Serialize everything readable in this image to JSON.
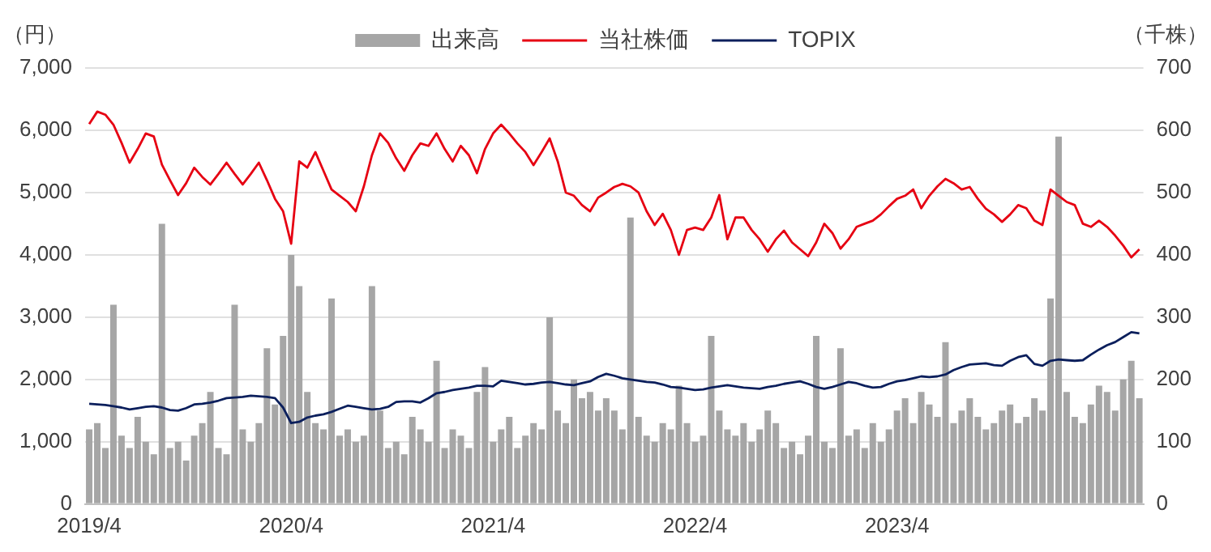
{
  "chart_data": {
    "type": "bar",
    "ylabel": "（円）",
    "y2label": "（千株）",
    "legend": "top",
    "grid": "y",
    "marker": "none",
    "line_style": "solid",
    "categories": [
      "2019/4",
      null,
      null,
      null,
      null,
      null,
      null,
      null,
      null,
      null,
      null,
      null,
      null,
      null,
      null,
      null,
      null,
      null,
      null,
      null,
      null,
      null,
      null,
      null,
      null,
      "2020/4",
      null,
      null,
      null,
      null,
      null,
      null,
      null,
      null,
      null,
      null,
      null,
      null,
      null,
      null,
      null,
      null,
      null,
      null,
      null,
      null,
      null,
      null,
      null,
      null,
      "2021/4",
      null,
      null,
      null,
      null,
      null,
      null,
      null,
      null,
      null,
      null,
      null,
      null,
      null,
      null,
      null,
      null,
      null,
      null,
      null,
      null,
      null,
      null,
      null,
      null,
      "2022/4",
      null,
      null,
      null,
      null,
      null,
      null,
      null,
      null,
      null,
      null,
      null,
      null,
      null,
      null,
      null,
      null,
      null,
      null,
      null,
      null,
      null,
      null,
      null,
      null,
      "2023/4",
      null,
      null,
      null,
      null,
      null,
      null,
      null,
      null,
      null,
      null,
      null,
      null,
      null,
      null,
      null,
      null,
      null,
      null,
      null,
      null,
      null,
      null,
      null,
      null,
      null,
      null,
      null,
      null,
      null,
      null
    ],
    "series": [
      {
        "name": "出来高",
        "axis": "y2",
        "color": "#a6a6a6",
        "values": [
          120,
          130,
          90,
          320,
          110,
          90,
          140,
          100,
          80,
          450,
          90,
          100,
          70,
          110,
          130,
          180,
          90,
          80,
          320,
          120,
          100,
          130,
          250,
          160,
          270,
          400,
          350,
          180,
          130,
          120,
          330,
          110,
          120,
          100,
          110,
          350,
          150,
          90,
          100,
          80,
          140,
          120,
          100,
          230,
          90,
          120,
          110,
          90,
          180,
          220,
          100,
          120,
          140,
          90,
          110,
          130,
          120,
          300,
          150,
          130,
          200,
          170,
          180,
          150,
          170,
          150,
          120,
          460,
          140,
          110,
          100,
          130,
          120,
          190,
          130,
          100,
          110,
          270,
          150,
          120,
          110,
          130,
          100,
          120,
          150,
          130,
          90,
          100,
          80,
          110,
          270,
          100,
          90,
          250,
          110,
          120,
          90,
          130,
          100,
          120,
          150,
          170,
          130,
          180,
          160,
          140,
          260,
          130,
          150,
          170,
          140,
          120,
          130,
          150,
          160,
          130,
          140,
          170,
          150,
          330,
          590,
          180,
          140,
          130,
          160,
          190,
          180,
          150,
          200,
          230,
          170
        ]
      },
      {
        "name": "当社株価",
        "type": "line",
        "color": "#e60012",
        "values": [
          6100,
          6300,
          6250,
          6090,
          5800,
          5480,
          5700,
          5950,
          5900,
          5450,
          5200,
          4960,
          5150,
          5400,
          5250,
          5130,
          5300,
          5480,
          5300,
          5130,
          5300,
          5480,
          5200,
          4900,
          4700,
          4180,
          5500,
          5400,
          5650,
          5350,
          5050,
          4950,
          4850,
          4700,
          5100,
          5600,
          5950,
          5800,
          5550,
          5350,
          5600,
          5790,
          5750,
          5950,
          5700,
          5500,
          5750,
          5600,
          5310,
          5700,
          5950,
          6090,
          5950,
          5790,
          5650,
          5440,
          5650,
          5870,
          5500,
          5000,
          4950,
          4800,
          4700,
          4920,
          5000,
          5090,
          5140,
          5100,
          5000,
          4700,
          4480,
          4660,
          4400,
          4000,
          4400,
          4440,
          4400,
          4600,
          4960,
          4250,
          4600,
          4600,
          4400,
          4250,
          4050,
          4250,
          4390,
          4200,
          4090,
          3980,
          4200,
          4500,
          4350,
          4100,
          4250,
          4450,
          4500,
          4550,
          4650,
          4780,
          4900,
          4950,
          5050,
          4750,
          4950,
          5100,
          5220,
          5150,
          5050,
          5090,
          4900,
          4740,
          4650,
          4530,
          4650,
          4800,
          4750,
          4550,
          4480,
          5050,
          4950,
          4850,
          4800,
          4500,
          4450,
          4550,
          4450,
          4310,
          4150,
          3960,
          4090
        ]
      },
      {
        "name": "TOPIX",
        "type": "line",
        "color": "#0b1f5c",
        "values": [
          1610,
          1600,
          1590,
          1570,
          1550,
          1520,
          1540,
          1560,
          1570,
          1550,
          1510,
          1500,
          1540,
          1600,
          1610,
          1630,
          1660,
          1700,
          1710,
          1720,
          1740,
          1730,
          1720,
          1700,
          1550,
          1300,
          1320,
          1390,
          1420,
          1440,
          1480,
          1530,
          1580,
          1560,
          1540,
          1520,
          1530,
          1560,
          1640,
          1650,
          1650,
          1630,
          1700,
          1780,
          1800,
          1830,
          1850,
          1870,
          1900,
          1900,
          1890,
          1980,
          1960,
          1940,
          1920,
          1930,
          1950,
          1960,
          1940,
          1920,
          1910,
          1940,
          1970,
          2040,
          2090,
          2060,
          2020,
          2000,
          1980,
          1960,
          1950,
          1920,
          1880,
          1870,
          1850,
          1830,
          1840,
          1870,
          1890,
          1910,
          1890,
          1870,
          1860,
          1850,
          1880,
          1900,
          1930,
          1950,
          1970,
          1930,
          1880,
          1850,
          1880,
          1920,
          1960,
          1940,
          1900,
          1870,
          1880,
          1930,
          1970,
          1990,
          2020,
          2050,
          2040,
          2050,
          2080,
          2150,
          2200,
          2240,
          2250,
          2260,
          2230,
          2220,
          2300,
          2360,
          2390,
          2250,
          2220,
          2300,
          2320,
          2310,
          2300,
          2310,
          2400,
          2480,
          2550,
          2600,
          2680,
          2760,
          2740
        ]
      }
    ],
    "ylim": [
      0,
      7000
    ],
    "yticks": [
      0,
      {
        "value": 1000,
        "label": "1,000"
      },
      {
        "value": 2000,
        "label": "2,000"
      },
      {
        "value": 3000,
        "label": "3,000"
      },
      {
        "value": 4000,
        "label": "4,000"
      },
      {
        "value": 5000,
        "label": "5,000"
      },
      {
        "value": 6000,
        "label": "6,000"
      },
      {
        "value": 7000,
        "label": "7,000"
      }
    ],
    "y2lim": [
      0,
      700
    ],
    "y2ticks": [
      0,
      100,
      200,
      300,
      400,
      500,
      600,
      700
    ]
  }
}
